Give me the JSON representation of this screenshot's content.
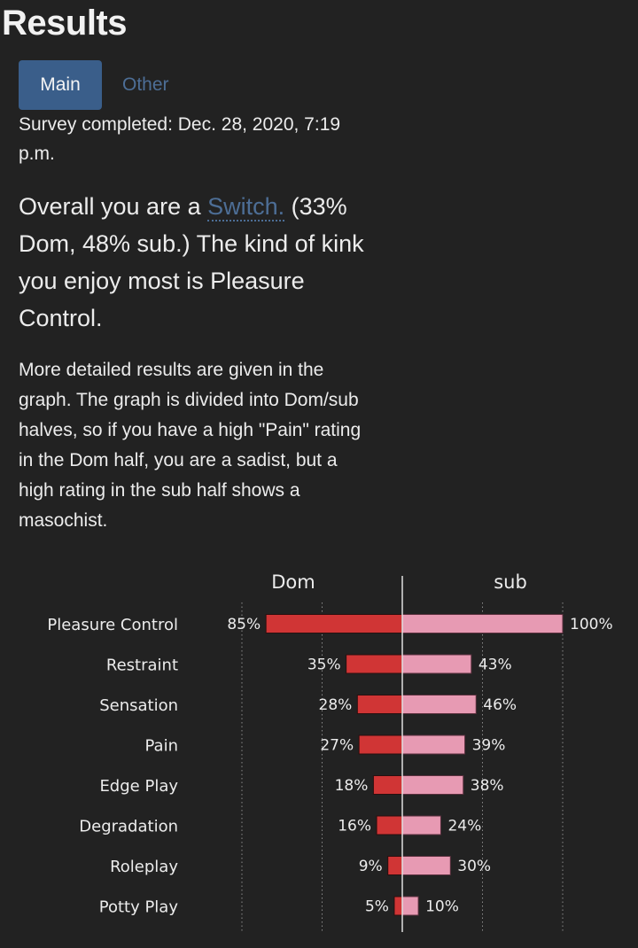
{
  "page": {
    "title": "Results"
  },
  "tabs": [
    {
      "label": "Main",
      "active": true
    },
    {
      "label": "Other",
      "active": false
    }
  ],
  "survey": {
    "completed_text": "Survey completed: Dec. 28, 2020, 7:19 p.m."
  },
  "summary": {
    "prefix": "Overall you are a ",
    "role_link": "Switch.",
    "suffix": " (33% Dom, 48% sub.) The kind of kink you enjoy most is Pleasure Control."
  },
  "details": {
    "text": "More detailed results are given in the graph. The graph is divided into Dom/sub halves, so if you have a high \"Pain\" rating in the Dom half, you are a sadist, but a high rating in the sub half shows a masochist."
  },
  "colors": {
    "background": "#222222",
    "dom_bar": "#d03535",
    "sub_bar": "#e79ab3",
    "tab_active": "#3a5e8a",
    "link": "#4d6e96"
  },
  "chart_data": {
    "type": "bar",
    "orientation": "horizontal-diverging",
    "series": [
      {
        "name": "Dom",
        "values": [
          85,
          35,
          28,
          27,
          18,
          16,
          9,
          5
        ]
      },
      {
        "name": "sub",
        "values": [
          100,
          43,
          46,
          39,
          38,
          24,
          30,
          10
        ]
      }
    ],
    "categories": [
      "Pleasure Control",
      "Restraint",
      "Sensation",
      "Pain",
      "Edge Play",
      "Degradation",
      "Roleplay",
      "Potty Play"
    ],
    "value_labels": {
      "Dom": [
        "85%",
        "35%",
        "28%",
        "27%",
        "18%",
        "16%",
        "9%",
        "5%"
      ],
      "sub": [
        "100%",
        "43%",
        "46%",
        "39%",
        "38%",
        "24%",
        "30%",
        "10%"
      ]
    },
    "xlim": [
      0,
      100
    ],
    "grid": "vertical dotted",
    "legend": "top"
  }
}
